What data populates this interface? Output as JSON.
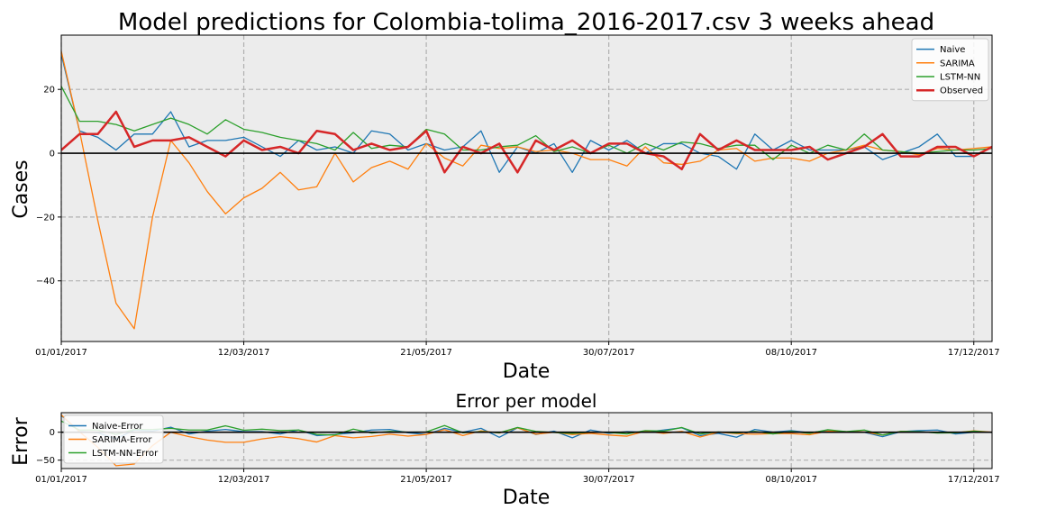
{
  "chart_data": [
    {
      "type": "line",
      "title": "Model predictions for Colombia-tolima_2016-2017.csv 3 weeks ahead",
      "xlabel": "Date",
      "ylabel": "Cases",
      "x_tick_labels": [
        "01/01/2017",
        "12/03/2017",
        "21/05/2017",
        "30/07/2017",
        "08/10/2017",
        "17/12/2017"
      ],
      "x_tick_weeks": [
        0,
        10,
        20,
        30,
        40,
        50
      ],
      "y_ticks": [
        -40,
        -20,
        0,
        20
      ],
      "y_tick_labels": [
        "−40",
        "−20",
        "0",
        "20"
      ],
      "ylim": [
        -59,
        37
      ],
      "xlim": [
        0,
        51
      ],
      "grid": true,
      "legend_position": "upper right",
      "zero_line": true,
      "colors": {
        "Naive": "#1f77b4",
        "SARIMA": "#ff7f0e",
        "LSTM-NN": "#2ca02c",
        "Observed": "#d62728"
      },
      "series": [
        {
          "name": "Naive",
          "values": [
            31,
            7,
            5,
            1,
            6,
            6,
            13,
            2,
            4,
            4,
            5,
            2,
            -1,
            4,
            1,
            2,
            0,
            7,
            6,
            1,
            3,
            1,
            2,
            7,
            -6,
            2,
            0,
            3,
            -6,
            4,
            1,
            4,
            0,
            3,
            3,
            0,
            -1,
            -5,
            6,
            1,
            4,
            1,
            1,
            1,
            2,
            -2,
            0,
            2,
            6,
            -1,
            -1,
            2
          ]
        },
        {
          "name": "SARIMA",
          "values": [
            32,
            7,
            -21,
            -47,
            -55,
            -20,
            4,
            -3,
            -12,
            -19,
            -14,
            -11,
            -6,
            -11.5,
            -10.5,
            0,
            -9,
            -4.5,
            -2.5,
            -5,
            3,
            -1.5,
            -4,
            2.5,
            1.5,
            2,
            0.5,
            1,
            0,
            -2,
            -2,
            -4,
            2,
            -3,
            -3.5,
            -2.5,
            1,
            1.5,
            -2.5,
            -1.5,
            -1.5,
            -2.5,
            0,
            1,
            2.5,
            1,
            0.5,
            -0.5,
            1.5,
            1,
            1.5,
            2
          ]
        },
        {
          "name": "LSTM-NN",
          "values": [
            21,
            10,
            10,
            9,
            7,
            9,
            11,
            9,
            6,
            10.5,
            7.5,
            6.5,
            5,
            4,
            3,
            1,
            6.5,
            1.5,
            2.5,
            2,
            7.5,
            6,
            1,
            1,
            2,
            2.5,
            5.5,
            0.5,
            2,
            0,
            2.5,
            0,
            3,
            1,
            3.5,
            3,
            1.5,
            2.5,
            2.5,
            -2,
            2.5,
            0,
            2.5,
            1,
            6,
            1,
            0.5,
            0,
            0.5,
            1,
            1,
            1.5
          ]
        },
        {
          "name": "Observed",
          "values": [
            1,
            6,
            6,
            13,
            2,
            4,
            4,
            5,
            2,
            -1,
            4,
            1,
            2,
            0,
            7,
            6,
            1,
            3,
            1,
            2,
            7,
            -6,
            2,
            0,
            3,
            -6,
            4,
            1,
            4,
            0,
            3,
            3,
            0,
            -1,
            -5,
            6,
            1,
            4,
            1,
            1,
            1,
            2,
            -2,
            0,
            2,
            6,
            -1,
            -1,
            2,
            2,
            -1,
            2
          ]
        }
      ]
    },
    {
      "type": "line",
      "title": "Error per model",
      "xlabel": "Date",
      "ylabel": "Error",
      "x_tick_labels": [
        "01/01/2017",
        "12/03/2017",
        "21/05/2017",
        "30/07/2017",
        "08/10/2017",
        "17/12/2017"
      ],
      "x_tick_weeks": [
        0,
        10,
        20,
        30,
        40,
        50
      ],
      "y_ticks": [
        -50,
        0
      ],
      "y_tick_labels": [
        "−50",
        "0"
      ],
      "ylim": [
        -65,
        35
      ],
      "xlim": [
        0,
        51
      ],
      "grid": true,
      "legend_position": "upper left",
      "zero_line": true,
      "colors": {
        "Naive-Error": "#1f77b4",
        "SARIMA-Error": "#ff7f0e",
        "LSTM-NN-Error": "#2ca02c"
      },
      "series": [
        {
          "name": "Naive-Error",
          "values": [
            30,
            1,
            -1,
            -12,
            4,
            2,
            9,
            -3,
            2,
            5,
            1,
            1,
            -3,
            4,
            -6,
            -4,
            -1,
            4,
            5,
            -1,
            -4,
            7,
            0,
            7,
            -9,
            8,
            -4,
            2,
            -10,
            4,
            -2,
            1,
            0,
            4,
            8,
            -6,
            -2,
            -9,
            5,
            0,
            3,
            -1,
            3,
            1,
            0,
            -8,
            1,
            3,
            4,
            -3,
            0,
            0
          ]
        },
        {
          "name": "SARIMA-Error",
          "values": [
            31,
            1,
            -27,
            -60,
            -57,
            -24,
            0,
            -8,
            -14,
            -18,
            -18,
            -12,
            -8,
            -11.5,
            -17.5,
            -6,
            -10,
            -7.5,
            -3.5,
            -7,
            -4,
            4.5,
            -6,
            2.5,
            -1.5,
            8,
            -3.5,
            0,
            -4,
            -2,
            -5,
            -7,
            2,
            -2,
            1.5,
            -8.5,
            0,
            -2.5,
            -3.5,
            -2.5,
            -2.5,
            -4.5,
            2,
            1,
            0.5,
            -5,
            1.5,
            0.5,
            -0.5,
            -1,
            2.5,
            0
          ]
        },
        {
          "name": "LSTM-NN-Error",
          "values": [
            20,
            4,
            4,
            -4,
            5,
            5,
            7,
            4,
            4,
            11.5,
            3.5,
            5.5,
            3,
            4,
            -4,
            -5,
            5.5,
            -1.5,
            1.5,
            0,
            0.5,
            12,
            -1,
            1,
            -1,
            8.5,
            1.5,
            -0.5,
            -2,
            0,
            -0.5,
            -3,
            3,
            2,
            8.5,
            -3,
            0.5,
            -1.5,
            1.5,
            -3,
            1.5,
            -2,
            4.5,
            1,
            4,
            -5,
            1.5,
            1,
            -1.5,
            -1,
            2,
            -0.5
          ]
        }
      ]
    }
  ]
}
